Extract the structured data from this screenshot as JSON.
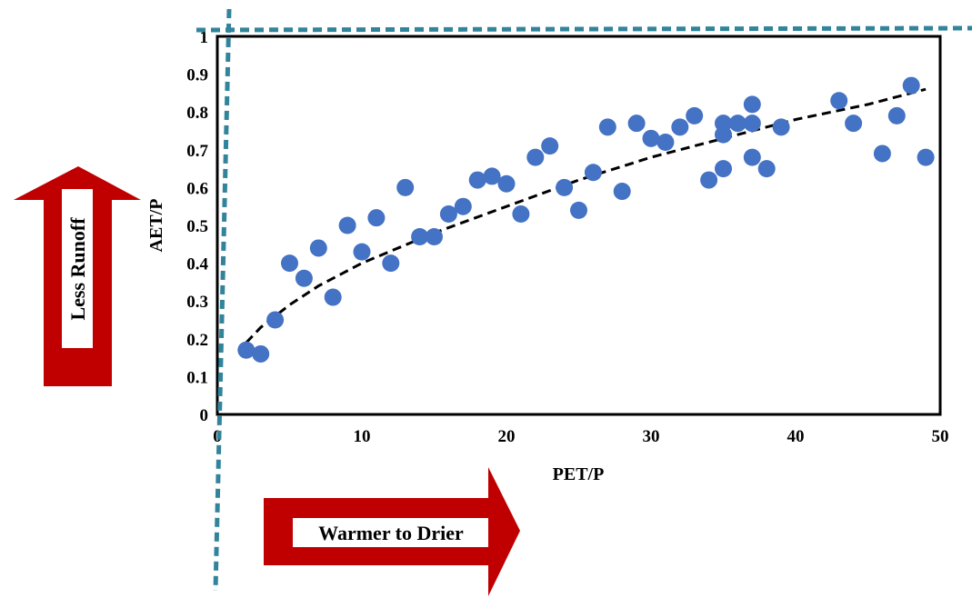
{
  "chart_data": {
    "type": "scatter",
    "title": "",
    "xlabel": "PET/P",
    "ylabel": "AET/P",
    "xlim": [
      0,
      50
    ],
    "ylim": [
      0,
      1
    ],
    "xticks": [
      "0",
      "10",
      "20",
      "30",
      "40",
      "50"
    ],
    "yticks": [
      "0",
      "0.1",
      "0.2",
      "0.3",
      "0.4",
      "0.5",
      "0.6",
      "0.7",
      "0.8",
      "0.9",
      "1"
    ],
    "grid": false,
    "point_color": "#4472C4",
    "trend_color": "#000000",
    "series": [
      {
        "x": [
          2,
          3,
          4,
          5,
          6,
          7,
          8,
          9,
          10,
          11,
          12,
          13,
          14,
          15,
          16,
          17,
          18,
          19,
          20,
          21,
          22,
          23,
          24,
          25,
          26,
          27,
          28,
          29,
          30,
          31,
          32,
          33,
          34,
          35,
          35,
          35,
          36,
          37,
          37,
          37,
          38,
          39,
          43,
          44,
          46,
          47,
          48,
          49
        ],
        "y": [
          0.17,
          0.16,
          0.25,
          0.4,
          0.36,
          0.44,
          0.31,
          0.5,
          0.43,
          0.52,
          0.4,
          0.6,
          0.47,
          0.47,
          0.53,
          0.55,
          0.62,
          0.63,
          0.61,
          0.53,
          0.68,
          0.71,
          0.6,
          0.54,
          0.64,
          0.76,
          0.59,
          0.77,
          0.73,
          0.72,
          0.76,
          0.79,
          0.62,
          0.77,
          0.74,
          0.65,
          0.77,
          0.82,
          0.77,
          0.68,
          0.65,
          0.76,
          0.83,
          0.77,
          0.69,
          0.79,
          0.87,
          0.68
        ]
      }
    ],
    "trendline": {
      "type": "power",
      "x": [
        2,
        3,
        5,
        7,
        10,
        15,
        20,
        25,
        30,
        35,
        40,
        45,
        49
      ],
      "y": [
        0.19,
        0.23,
        0.29,
        0.34,
        0.4,
        0.48,
        0.55,
        0.62,
        0.68,
        0.73,
        0.78,
        0.82,
        0.86
      ]
    }
  },
  "annotations": {
    "up_arrow_label": "Less Runoff",
    "right_arrow_label": "Warmer to Drier",
    "arrow_color": "#C00000",
    "dotted_line_color": "#31849B"
  }
}
